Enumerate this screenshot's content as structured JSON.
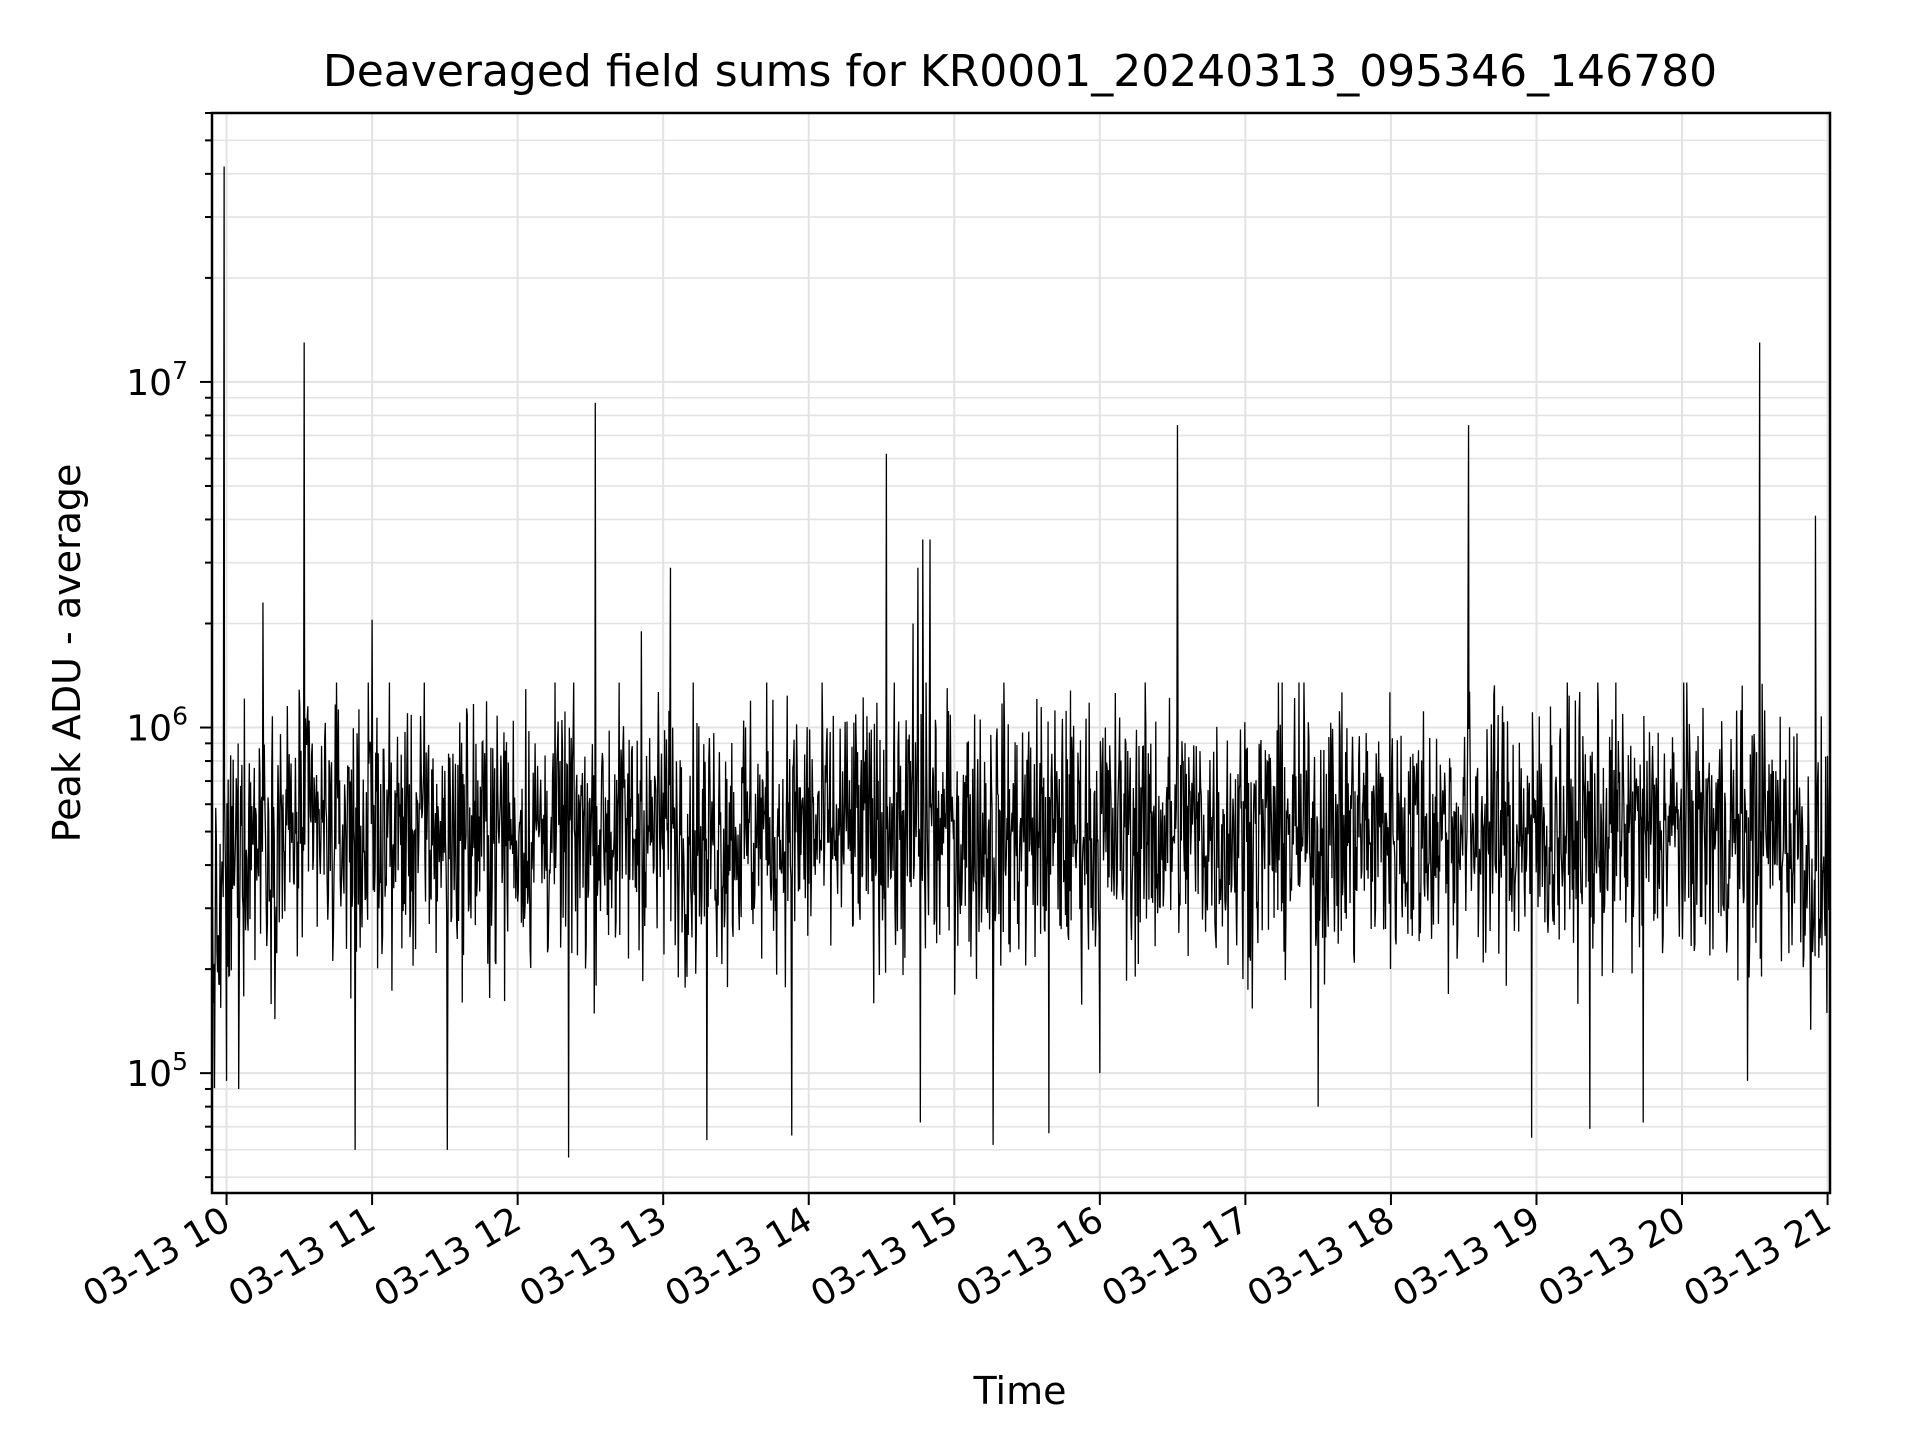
{
  "chart_data": {
    "type": "line",
    "title": "Deaveraged field sums for KR0001_20240313_095346_146780",
    "xlabel": "Time",
    "ylabel": "Peak ADU - average",
    "yscale": "log",
    "ylim": [
      45000,
      60000000
    ],
    "xlim": [
      "03-13 09:54",
      "03-13 21:01"
    ],
    "grid": true,
    "line_color": "#000000",
    "x_ticks": [
      "03-13 10",
      "03-13 11",
      "03-13 12",
      "03-13 13",
      "03-13 14",
      "03-13 15",
      "03-13 16",
      "03-13 17",
      "03-13 18",
      "03-13 19",
      "03-13 20",
      "03-13 21"
    ],
    "y_ticks": [
      {
        "base": "10",
        "exp": "5",
        "value": 100000
      },
      {
        "base": "10",
        "exp": "6",
        "value": 1000000
      },
      {
        "base": "10",
        "exp": "7",
        "value": 10000000
      }
    ],
    "baseline": {
      "start": "03-13 09:54",
      "end": "03-13 21:01",
      "typical": 500000,
      "low": 100000,
      "high": 1000000
    },
    "spikes": [
      {
        "time": "03-13 09:59",
        "value": 42000000
      },
      {
        "time": "03-13 10:32",
        "value": 13000000
      },
      {
        "time": "03-13 12:32",
        "value": 8700000
      },
      {
        "time": "03-13 14:32",
        "value": 6200000
      },
      {
        "time": "03-13 16:32",
        "value": 7500000
      },
      {
        "time": "03-13 18:32",
        "value": 7500000
      },
      {
        "time": "03-13 20:32",
        "value": 13000000
      },
      {
        "time": "03-13 20:55",
        "value": 4100000
      },
      {
        "time": "03-13 13:03",
        "value": 2900000
      },
      {
        "time": "03-13 10:15",
        "value": 2300000
      },
      {
        "time": "03-13 11:00",
        "value": 2050000
      },
      {
        "time": "03-13 12:51",
        "value": 1900000
      },
      {
        "time": "03-13 14:47",
        "value": 3500000
      },
      {
        "time": "03-13 14:50",
        "value": 3500000
      },
      {
        "time": "03-13 14:45",
        "value": 2900000
      },
      {
        "time": "03-13 14:43",
        "value": 2000000
      }
    ],
    "dips": [
      {
        "time": "03-13 09:57",
        "value": 180000
      },
      {
        "time": "03-13 10:00",
        "value": 95000
      },
      {
        "time": "03-13 10:05",
        "value": 90000
      },
      {
        "time": "03-13 10:53",
        "value": 60000
      },
      {
        "time": "03-13 11:31",
        "value": 60000
      },
      {
        "time": "03-13 12:21",
        "value": 57000
      },
      {
        "time": "03-13 13:18",
        "value": 64000
      },
      {
        "time": "03-13 13:53",
        "value": 66000
      },
      {
        "time": "03-13 14:46",
        "value": 72000
      },
      {
        "time": "03-13 15:16",
        "value": 62000
      },
      {
        "time": "03-13 15:39",
        "value": 67000
      },
      {
        "time": "03-13 16:00",
        "value": 100000
      },
      {
        "time": "03-13 17:30",
        "value": 80000
      },
      {
        "time": "03-13 18:58",
        "value": 65000
      },
      {
        "time": "03-13 19:22",
        "value": 69000
      },
      {
        "time": "03-13 19:44",
        "value": 72000
      },
      {
        "time": "03-13 20:27",
        "value": 95000
      }
    ]
  }
}
